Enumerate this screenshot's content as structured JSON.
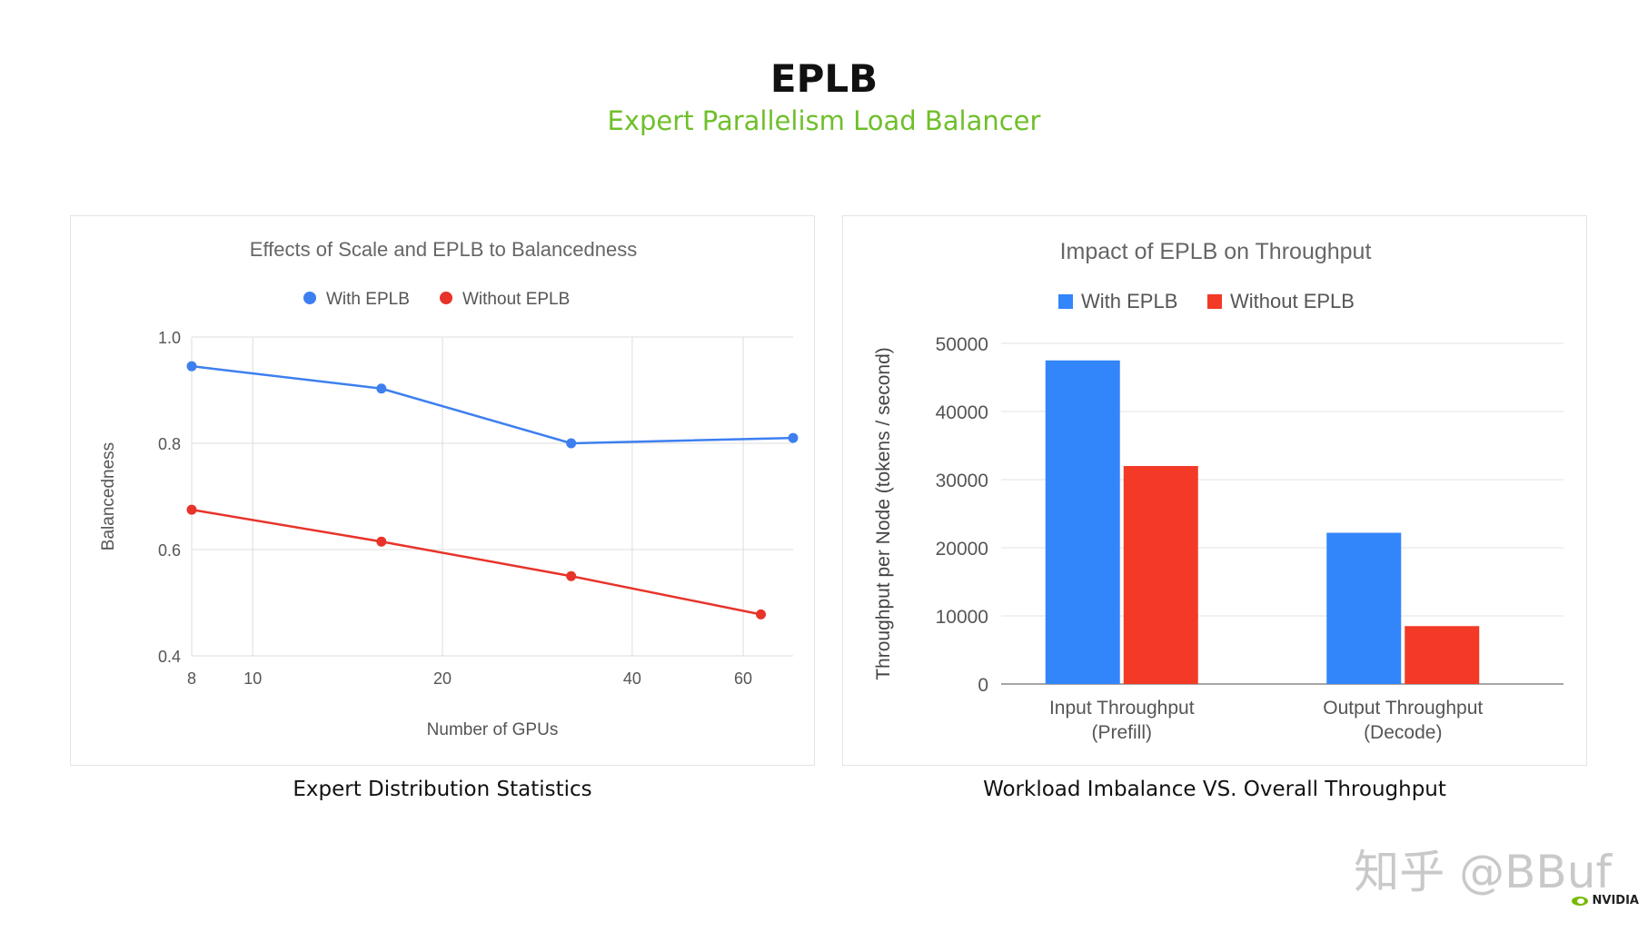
{
  "header": {
    "title": "EPLB",
    "subtitle": "Expert Parallelism Load Balancer",
    "subtitle_color": "#6fbf2a"
  },
  "captions": {
    "left": "Expert Distribution Statistics",
    "right": "Workload Imbalance VS. Overall Throughput"
  },
  "watermark": "知乎 @BBuf",
  "logo": {
    "text": "NVIDIA",
    "icon": "nvidia-eye-icon",
    "color": "#76b900"
  },
  "chart_data": [
    {
      "type": "line",
      "title": "Effects of Scale and EPLB to Balancedness",
      "xlabel": "Number of GPUs",
      "ylabel": "Balancedness",
      "x_scale": "log",
      "x_ticks": [
        8,
        10,
        20,
        40,
        60
      ],
      "x_tick_labels": [
        "8",
        "10",
        "20",
        "40",
        "60"
      ],
      "xlim": [
        8,
        72
      ],
      "ylim": [
        0.4,
        1.0
      ],
      "y_ticks": [
        0.4,
        0.6,
        0.8,
        1.0
      ],
      "y_tick_labels": [
        "0.4",
        "0.6",
        "0.8",
        "1.0"
      ],
      "grid": true,
      "legend_position": "top-center",
      "legend_marker": "circle",
      "series": [
        {
          "name": "With EPLB",
          "color": "#3d7ff0",
          "x": [
            8,
            16,
            32,
            72
          ],
          "y": [
            0.945,
            0.903,
            0.8,
            0.81
          ]
        },
        {
          "name": "Without EPLB",
          "color": "#e8332a",
          "x": [
            8,
            16,
            32,
            64
          ],
          "y": [
            0.675,
            0.615,
            0.55,
            0.478
          ]
        }
      ]
    },
    {
      "type": "bar",
      "title": "Impact of EPLB on Throughput",
      "xlabel": "",
      "ylabel": "Throughput per Node (tokens / second)",
      "categories": [
        "Input Throughput\n(Prefill)",
        "Output Throughput\n(Decode)"
      ],
      "ylim": [
        0,
        50000
      ],
      "y_ticks": [
        0,
        10000,
        20000,
        30000,
        40000,
        50000
      ],
      "y_tick_labels": [
        "0",
        "10000",
        "20000",
        "30000",
        "40000",
        "50000"
      ],
      "grid": true,
      "legend_position": "top-center",
      "legend_marker": "square",
      "series": [
        {
          "name": "With EPLB",
          "color": "#3385fa",
          "values": [
            47500,
            22200
          ]
        },
        {
          "name": "Without EPLB",
          "color": "#f23a26",
          "values": [
            32000,
            8500
          ]
        }
      ]
    }
  ]
}
